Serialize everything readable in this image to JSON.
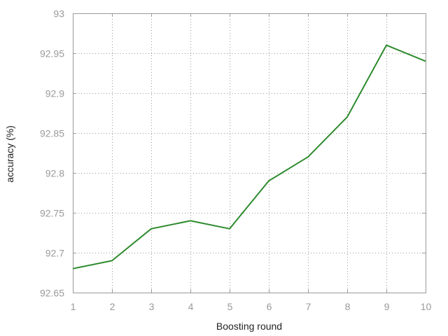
{
  "chart_data": {
    "type": "line",
    "title": "",
    "xlabel": "Boosting round",
    "ylabel": "accuracy (%)",
    "xlim": [
      1,
      10
    ],
    "ylim": [
      92.65,
      93
    ],
    "x_ticks": [
      "1",
      "2",
      "3",
      "4",
      "5",
      "6",
      "7",
      "8",
      "9",
      "10"
    ],
    "y_ticks": [
      "92.65",
      "92.7",
      "92.75",
      "92.8",
      "92.85",
      "92.9",
      "92.95",
      "93"
    ],
    "grid": true,
    "legend": "none",
    "series": [
      {
        "color": "#2e8b2e",
        "x": [
          1,
          2,
          3,
          4,
          5,
          6,
          7,
          8,
          9,
          10
        ],
        "y": [
          92.68,
          92.69,
          92.73,
          92.74,
          92.73,
          92.79,
          92.82,
          92.87,
          92.96,
          92.94
        ]
      }
    ]
  }
}
